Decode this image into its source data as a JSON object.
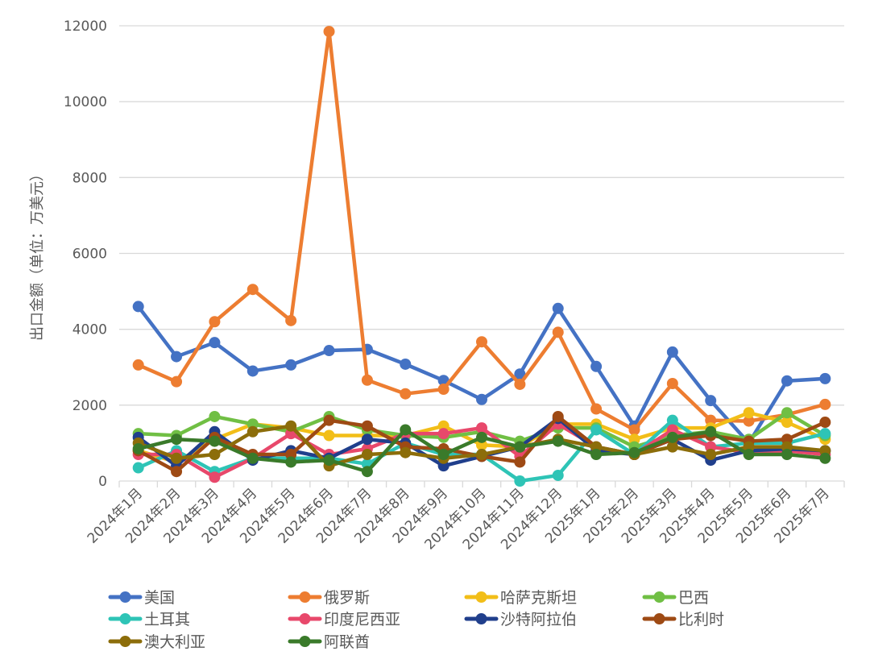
{
  "chart_data": {
    "type": "line",
    "title": "",
    "xlabel": "",
    "ylabel": "出口金额（单位：万美元）",
    "ylim": [
      0,
      12000
    ],
    "yticks": [
      0,
      2000,
      4000,
      6000,
      8000,
      10000,
      12000
    ],
    "grid": true,
    "legend_position": "bottom",
    "categories": [
      "2024年1月",
      "2024年2月",
      "2024年3月",
      "2024年4月",
      "2024年5月",
      "2024年6月",
      "2024年7月",
      "2024年8月",
      "2024年9月",
      "2024年10月",
      "2024年11月",
      "2024年12月",
      "2025年1月",
      "2025年2月",
      "2025年3月",
      "2025年4月",
      "2025年5月",
      "2025年6月",
      "2025年7月"
    ],
    "series": [
      {
        "name": "美国",
        "color": "#4472C4",
        "values": [
          4600,
          3280,
          3650,
          2900,
          3060,
          3440,
          3470,
          3080,
          2650,
          2150,
          2820,
          4550,
          3020,
          1450,
          3400,
          2120,
          1000,
          2640,
          2700
        ]
      },
      {
        "name": "俄罗斯",
        "color": "#ED7D31",
        "values": [
          3060,
          2620,
          4200,
          5050,
          4230,
          11850,
          2660,
          2300,
          2420,
          3670,
          2550,
          3920,
          1900,
          1350,
          2570,
          1600,
          1580,
          1750,
          2020
        ]
      },
      {
        "name": "哈萨克斯坦",
        "color": "#F2BE18",
        "values": [
          800,
          500,
          1100,
          1500,
          1400,
          1200,
          1200,
          1200,
          1450,
          950,
          900,
          1500,
          1500,
          1100,
          1400,
          1400,
          1800,
          1550,
          1100
        ]
      },
      {
        "name": "巴西",
        "color": "#70BF44",
        "values": [
          1250,
          1200,
          1700,
          1500,
          1300,
          1700,
          1350,
          1200,
          1150,
          1300,
          1050,
          1400,
          1400,
          900,
          1200,
          1300,
          1100,
          1800,
          1200
        ]
      },
      {
        "name": "土耳其",
        "color": "#2EC4B6",
        "values": [
          350,
          800,
          250,
          600,
          600,
          600,
          450,
          1000,
          700,
          700,
          0,
          150,
          1350,
          700,
          1600,
          900,
          1000,
          1000,
          1250
        ]
      },
      {
        "name": "印度尼西亚",
        "color": "#E8486B",
        "values": [
          700,
          700,
          100,
          600,
          1250,
          700,
          850,
          1250,
          1250,
          1400,
          650,
          1500,
          900,
          700,
          1350,
          900,
          750,
          800,
          700
        ]
      },
      {
        "name": "沙特阿拉伯",
        "color": "#203F8C",
        "values": [
          1150,
          400,
          1300,
          550,
          800,
          600,
          1100,
          1000,
          400,
          650,
          900,
          1650,
          800,
          700,
          1100,
          550,
          800,
          850,
          800
        ]
      },
      {
        "name": "比利时",
        "color": "#9E4A14",
        "values": [
          800,
          250,
          1150,
          700,
          700,
          1600,
          1450,
          900,
          850,
          650,
          500,
          1700,
          900,
          700,
          1100,
          1200,
          1050,
          1100,
          1550
        ]
      },
      {
        "name": "澳大利亚",
        "color": "#8C6D0A",
        "values": [
          1000,
          600,
          700,
          1300,
          1450,
          400,
          700,
          750,
          600,
          700,
          900,
          1100,
          900,
          700,
          900,
          700,
          900,
          900,
          800
        ]
      },
      {
        "name": "阿联酋",
        "color": "#3A7A2A",
        "values": [
          850,
          1100,
          1050,
          600,
          500,
          550,
          250,
          1350,
          700,
          1150,
          900,
          1050,
          700,
          750,
          1150,
          1300,
          700,
          700,
          600
        ]
      }
    ]
  }
}
